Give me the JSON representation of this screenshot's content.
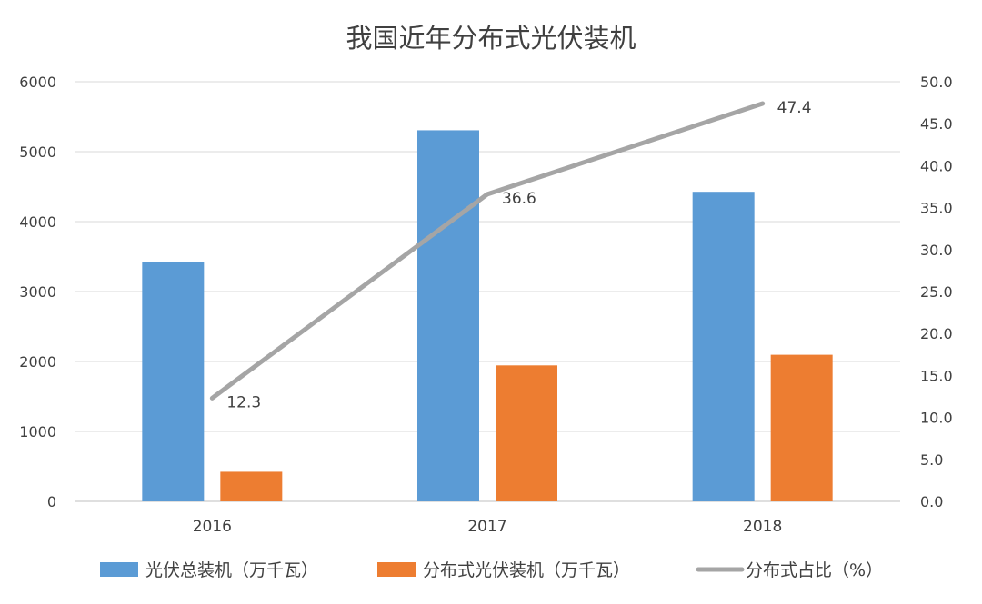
{
  "chart_data": {
    "type": "bar",
    "title": "我国近年分布式光伏装机",
    "categories": [
      "2016",
      "2017",
      "2018"
    ],
    "series": [
      {
        "name": "光伏总装机（万千瓦）",
        "kind": "bar",
        "axis": "left",
        "color": "#5B9BD5",
        "values": [
          3424,
          5306,
          4426
        ]
      },
      {
        "name": "分布式光伏装机（万千瓦）",
        "kind": "bar",
        "axis": "left",
        "color": "#ED7D31",
        "values": [
          423,
          1944,
          2096
        ]
      },
      {
        "name": "分布式占比（%）",
        "kind": "line",
        "axis": "right",
        "color": "#A5A5A5",
        "values": [
          12.3,
          36.6,
          47.4
        ],
        "data_labels": [
          "12.3",
          "36.6",
          "47.4"
        ]
      }
    ],
    "y_left": {
      "min": 0,
      "max": 6000,
      "ticks": [
        "0",
        "1000",
        "2000",
        "3000",
        "4000",
        "5000",
        "6000"
      ]
    },
    "y_right": {
      "min": 0,
      "max": 50,
      "ticks": [
        "0.0",
        "5.0",
        "10.0",
        "15.0",
        "20.0",
        "25.0",
        "30.0",
        "35.0",
        "40.0",
        "45.0",
        "50.0"
      ]
    },
    "grid": true,
    "legend_position": "bottom"
  }
}
